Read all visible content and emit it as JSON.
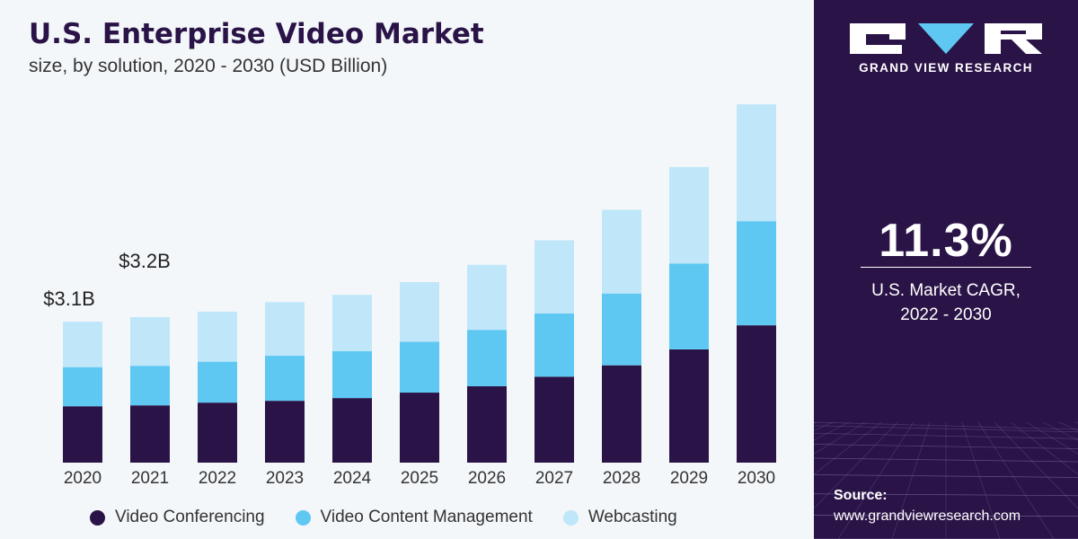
{
  "colors": {
    "video_conferencing": "#2a1447",
    "video_content_management": "#5ec8f2",
    "webcasting": "#bfe7f9",
    "panel": "#2a1447"
  },
  "chart_data": {
    "type": "bar",
    "stacked": true,
    "title": "U.S. Enterprise Video Market",
    "subtitle": "size, by solution, 2020 - 2030 (USD Billion)",
    "categories": [
      "2020",
      "2021",
      "2022",
      "2023",
      "2024",
      "2025",
      "2026",
      "2027",
      "2028",
      "2029",
      "2030"
    ],
    "series": [
      {
        "name": "Video Conferencing",
        "color": "#2a1447",
        "values": [
          1.24,
          1.26,
          1.32,
          1.36,
          1.42,
          1.54,
          1.68,
          1.89,
          2.14,
          2.49,
          3.02
        ]
      },
      {
        "name": "Video Content Management",
        "color": "#5ec8f2",
        "values": [
          0.86,
          0.87,
          0.9,
          0.99,
          1.03,
          1.12,
          1.24,
          1.39,
          1.58,
          1.89,
          2.29
        ]
      },
      {
        "name": "Webcasting",
        "color": "#bfe7f9",
        "values": [
          1.0,
          1.07,
          1.1,
          1.18,
          1.24,
          1.31,
          1.43,
          1.61,
          1.84,
          2.12,
          2.57
        ]
      }
    ],
    "data_labels": [
      {
        "category": "2020",
        "text": "$3.1B"
      },
      {
        "category": "2021",
        "text": "$3.2B"
      }
    ],
    "ylim": [
      0,
      8
    ],
    "grid": false,
    "legend_position": "bottom"
  },
  "brand": {
    "name": "GRAND VIEW RESEARCH",
    "logo_icon": "gvr-logo-icon"
  },
  "highlight": {
    "cagr_value": "11.3%",
    "cagr_label_line1": "U.S. Market CAGR,",
    "cagr_label_line2": "2022 - 2030"
  },
  "source": {
    "title": "Source:",
    "url": "www.grandviewresearch.com"
  }
}
